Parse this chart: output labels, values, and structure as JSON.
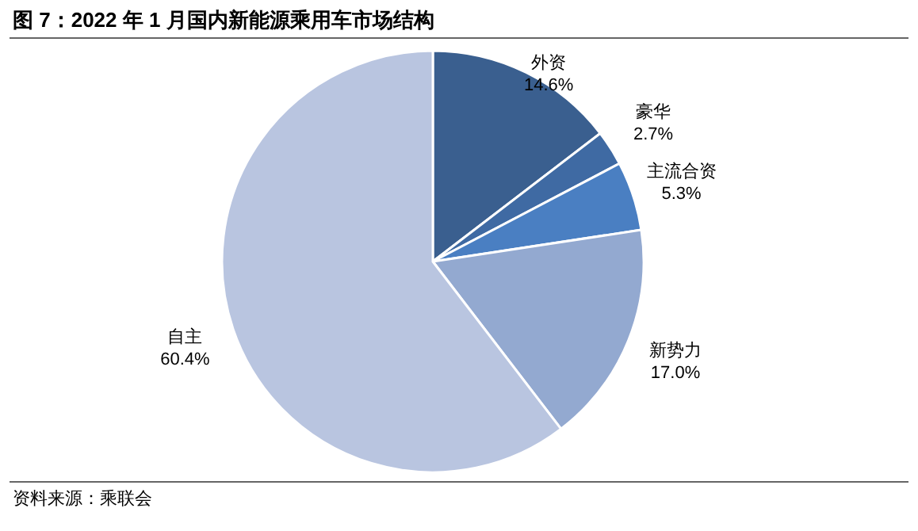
{
  "chart_data": {
    "type": "pie",
    "title": "图 7：2022 年 1 月国内新能源乘用车市场结构",
    "categories": [
      "外资",
      "豪华",
      "主流合资",
      "新势力",
      "自主"
    ],
    "values": [
      14.6,
      2.7,
      5.3,
      17.0,
      60.4
    ],
    "colors": [
      "#3a5f8f",
      "#3f6aa3",
      "#4a7fc2",
      "#93a9d0",
      "#b9c5e0"
    ],
    "value_labels": [
      "14.6%",
      "2.7%",
      "5.3%",
      "17.0%",
      "60.4%"
    ],
    "annotations": [
      "资料来源：乘联会"
    ]
  }
}
